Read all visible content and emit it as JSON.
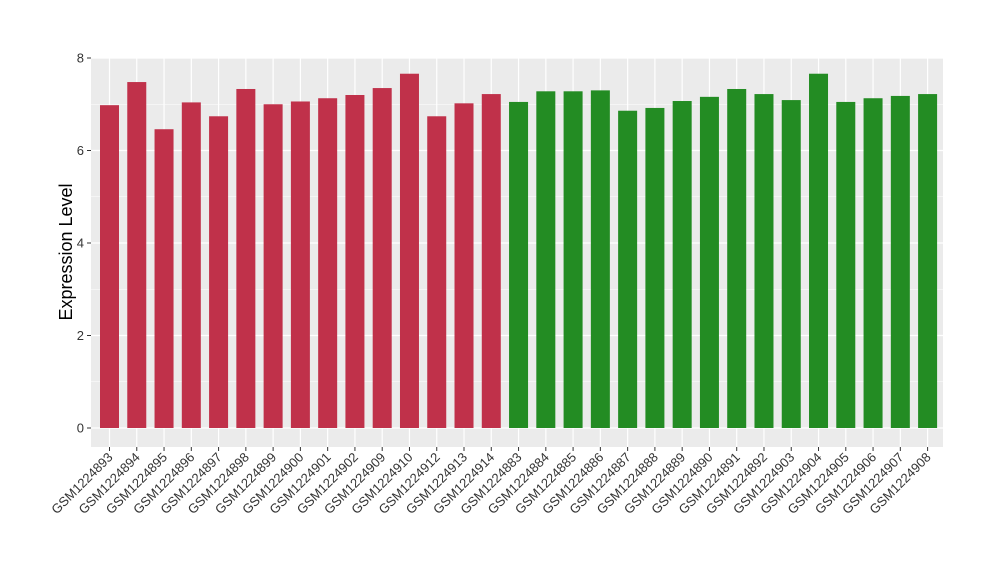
{
  "chart_data": {
    "type": "bar",
    "title": "",
    "xlabel": "",
    "ylabel": "Expression Level",
    "ylim": [
      0,
      8.1
    ],
    "yticks": [
      0,
      2,
      4,
      6,
      8
    ],
    "grid": true,
    "legend": "none",
    "categories": [
      "GSM1224893",
      "GSM1224894",
      "GSM1224895",
      "GSM1224896",
      "GSM1224897",
      "GSM1224898",
      "GSM1224899",
      "GSM1224900",
      "GSM1224901",
      "GSM1224902",
      "GSM1224909",
      "GSM1224910",
      "GSM1224912",
      "GSM1224913",
      "GSM1224914",
      "GSM1224883",
      "GSM1224884",
      "GSM1224885",
      "GSM1224886",
      "GSM1224887",
      "GSM1224888",
      "GSM1224889",
      "GSM1224890",
      "GSM1224891",
      "GSM1224892",
      "GSM1224903",
      "GSM1224904",
      "GSM1224905",
      "GSM1224906",
      "GSM1224907",
      "GSM1224908"
    ],
    "values": [
      6.98,
      7.48,
      6.46,
      7.04,
      6.74,
      7.33,
      7.0,
      7.06,
      7.13,
      7.2,
      7.35,
      7.66,
      6.74,
      7.02,
      7.22,
      7.05,
      7.28,
      7.28,
      7.3,
      6.86,
      6.92,
      7.07,
      7.16,
      7.33,
      7.22,
      7.09,
      7.66,
      7.05,
      7.13,
      7.18,
      7.22
    ],
    "groups": [
      "a",
      "a",
      "a",
      "a",
      "a",
      "a",
      "a",
      "a",
      "a",
      "a",
      "a",
      "a",
      "a",
      "a",
      "a",
      "b",
      "b",
      "b",
      "b",
      "b",
      "b",
      "b",
      "b",
      "b",
      "b",
      "b",
      "b",
      "b",
      "b",
      "b",
      "b"
    ],
    "group_colors": {
      "a": "#c0314a",
      "b": "#238c23"
    },
    "panel_background": "#ebebeb",
    "gridline_color": "#ffffff"
  }
}
